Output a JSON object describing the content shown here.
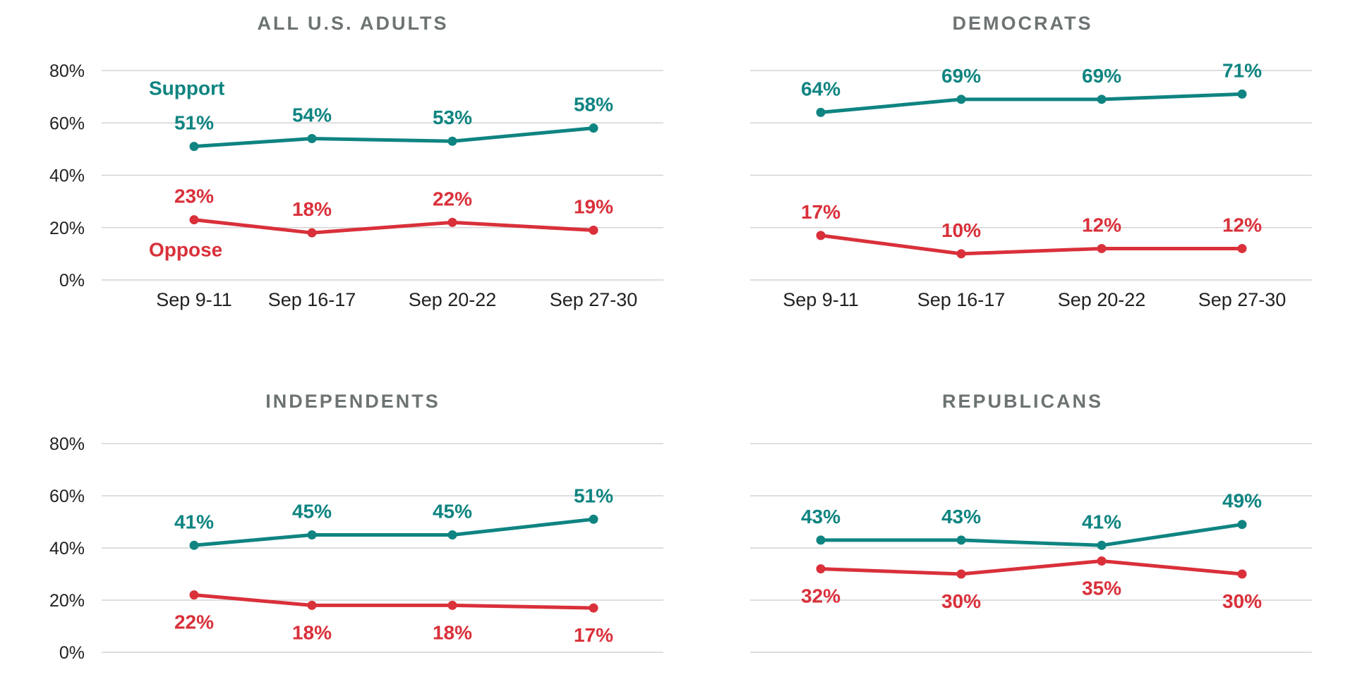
{
  "chart_data": [
    {
      "type": "line",
      "title": "ALL U.S. ADULTS",
      "categories": [
        "Sep 9-11",
        "Sep 16-17",
        "Sep 20-22",
        "Sep 27-30"
      ],
      "yticks": [
        "0%",
        "20%",
        "40%",
        "60%",
        "80%"
      ],
      "ylim": [
        0,
        80
      ],
      "grid": true,
      "series": [
        {
          "name": "Support",
          "color": "#0f8481",
          "values": [
            51,
            54,
            53,
            58
          ],
          "labels": [
            "51%",
            "54%",
            "53%",
            "58%"
          ],
          "label_position": "above"
        },
        {
          "name": "Oppose",
          "color": "#d9303a",
          "values": [
            23,
            18,
            22,
            19
          ],
          "labels": [
            "23%",
            "18%",
            "22%",
            "19%"
          ],
          "label_position": "above"
        }
      ]
    },
    {
      "type": "line",
      "title": "DEMOCRATS",
      "categories": [
        "Sep 9-11",
        "Sep 16-17",
        "Sep 20-22",
        "Sep 27-30"
      ],
      "ylim": [
        0,
        80
      ],
      "grid": true,
      "series": [
        {
          "color": "#0f8481",
          "values": [
            64,
            69,
            69,
            71
          ],
          "labels": [
            "64%",
            "69%",
            "69%",
            "71%"
          ],
          "label_position": "above"
        },
        {
          "color": "#d9303a",
          "values": [
            17,
            10,
            12,
            12
          ],
          "labels": [
            "17%",
            "10%",
            "12%",
            "12%"
          ],
          "label_position": "above"
        }
      ]
    },
    {
      "type": "line",
      "title": "INDEPENDENTS",
      "yticks": [
        "0%",
        "20%",
        "40%",
        "60%",
        "80%"
      ],
      "ylim": [
        0,
        80
      ],
      "grid": true,
      "series": [
        {
          "color": "#0f8481",
          "values": [
            41,
            45,
            45,
            51
          ],
          "labels": [
            "41%",
            "45%",
            "45%",
            "51%"
          ],
          "label_position": "above"
        },
        {
          "color": "#d9303a",
          "values": [
            22,
            18,
            18,
            17
          ],
          "labels": [
            "22%",
            "18%",
            "18%",
            "17%"
          ],
          "label_position": "below"
        }
      ]
    },
    {
      "type": "line",
      "title": "REPUBLICANS",
      "ylim": [
        0,
        80
      ],
      "grid": true,
      "series": [
        {
          "color": "#0f8481",
          "values": [
            43,
            43,
            41,
            49
          ],
          "labels": [
            "43%",
            "43%",
            "41%",
            "49%"
          ],
          "label_position": "above"
        },
        {
          "color": "#d9303a",
          "values": [
            32,
            30,
            35,
            30
          ],
          "labels": [
            "32%",
            "30%",
            "35%",
            "30%"
          ],
          "label_position": "below"
        }
      ]
    }
  ]
}
